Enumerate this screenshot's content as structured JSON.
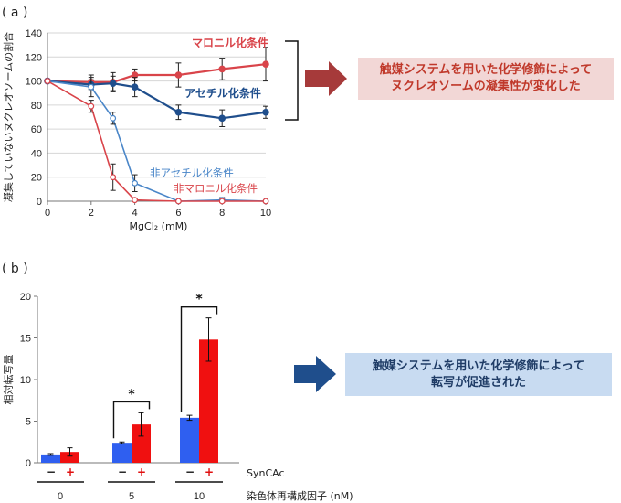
{
  "panels": {
    "a_label": "( a )",
    "b_label": "( b )"
  },
  "callouts": {
    "a_text": "触媒システムを用いた化学修飾によって\nヌクレオソームの凝集性が変化した",
    "b_text": "触媒システムを用いた化学修飾によって\n転写が促進された"
  },
  "colors": {
    "malonyl": "#d9444a",
    "acetyl": "#1f4e8c",
    "non_acetyl": "#4a86c8",
    "non_malonyl": "#d9444a",
    "bar_minus": "#2f5ff0",
    "bar_plus": "#f01010",
    "arrow_a": "#a63a3a",
    "arrow_b": "#1f4e8c"
  },
  "chart_data": [
    {
      "type": "line",
      "ylabel": "凝集していないヌクレオソームの割合",
      "xlabel": "MgCl₂ (mM)",
      "xlim": [
        0,
        10
      ],
      "ylim": [
        0,
        140
      ],
      "xticks": [
        0,
        2,
        4,
        6,
        8,
        10
      ],
      "yticks": [
        0,
        20,
        40,
        60,
        80,
        100,
        120,
        140
      ],
      "series": [
        {
          "name": "マロニル化条件",
          "x": [
            0,
            2,
            3,
            4,
            6,
            8,
            10
          ],
          "y": [
            100,
            99,
            99,
            105,
            105,
            110,
            114
          ],
          "err": [
            0,
            6,
            8,
            5,
            10,
            9,
            14
          ],
          "marker": "filled"
        },
        {
          "name": "アセチル化条件",
          "x": [
            0,
            2,
            3,
            4,
            6,
            8,
            10
          ],
          "y": [
            100,
            97,
            98,
            95,
            74,
            69,
            74
          ],
          "err": [
            0,
            4,
            6,
            8,
            6,
            7,
            5
          ],
          "marker": "filled"
        },
        {
          "name": "非アセチル化条件",
          "x": [
            0,
            2,
            3,
            4,
            6,
            8,
            10
          ],
          "y": [
            100,
            95,
            69,
            15,
            0,
            1,
            0
          ],
          "err": [
            0,
            8,
            5,
            7,
            0,
            2,
            0
          ],
          "marker": "open"
        },
        {
          "name": "非マロニル化条件",
          "x": [
            0,
            2,
            3,
            4,
            6,
            8,
            10
          ],
          "y": [
            100,
            79,
            20,
            1,
            0,
            0,
            0
          ],
          "err": [
            0,
            5,
            11,
            1,
            0,
            0,
            0
          ],
          "marker": "open"
        }
      ]
    },
    {
      "type": "bar",
      "ylabel": "相対転写量",
      "ylim": [
        0,
        20
      ],
      "yticks": [
        0,
        5,
        10,
        15,
        20
      ],
      "factor_label": "SynCAc",
      "xlabel": "染色体再構成因子 (nM)",
      "categories": [
        "0",
        "5",
        "10"
      ],
      "signs": [
        "−",
        "+"
      ],
      "series": [
        {
          "name": "−",
          "values": [
            1.0,
            2.4,
            5.4
          ],
          "err": [
            0.1,
            0.1,
            0.3
          ]
        },
        {
          "name": "+",
          "values": [
            1.3,
            4.6,
            14.8
          ],
          "err": [
            0.5,
            1.4,
            2.6
          ]
        }
      ],
      "significance": [
        {
          "category": "5",
          "mark": "*"
        },
        {
          "category": "10",
          "mark": "*"
        }
      ]
    }
  ]
}
